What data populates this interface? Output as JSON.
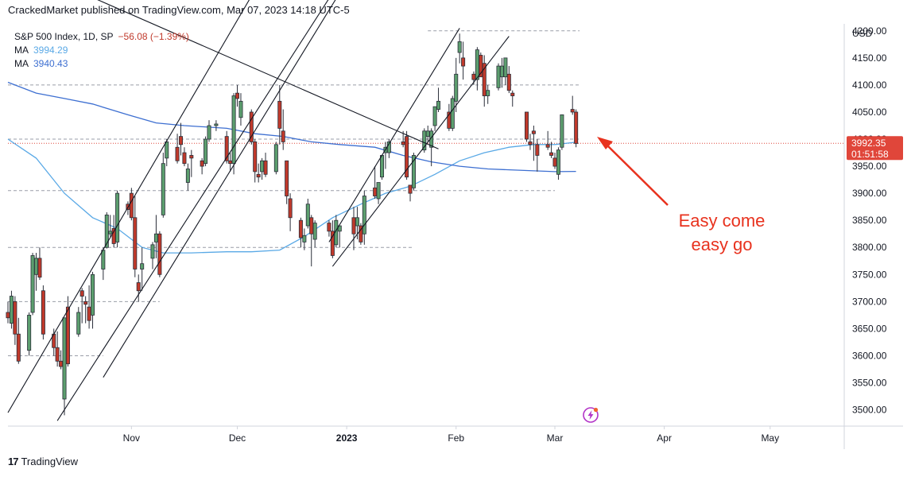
{
  "header": {
    "published": "CrackedMarket published on TradingView.com, Mar 07, 2023 14:18 UTC-5"
  },
  "legend": {
    "symbol": "S&P 500 Index, 1D, SP",
    "change": "−56.08 (−1.39%)",
    "ma1_label": "MA",
    "ma1_value": "3994.29",
    "ma2_label": "MA",
    "ma2_value": "3940.43"
  },
  "price_scale": {
    "currency": "USD",
    "last_price": "3992.35",
    "countdown": "01:51:58"
  },
  "annotation": {
    "line1": "Easy come",
    "line2": "easy go"
  },
  "footer": {
    "brand_mark": "17",
    "brand": "TradingView"
  },
  "colors": {
    "up": "#5c9e6e",
    "down": "#c0392b",
    "ma1": "#5aa9e6",
    "ma2": "#3d6fd1",
    "annotation": "#e8321e",
    "price_label": "#e0463a"
  },
  "icons": [
    "tradingview-logo-icon",
    "lightning-icon"
  ],
  "chart_data": {
    "type": "candlestick",
    "title": "S&P 500 Index, 1D, SP",
    "y_tick_labels": [
      "3500.00",
      "3550.00",
      "3600.00",
      "3650.00",
      "3700.00",
      "3750.00",
      "3800.00",
      "3850.00",
      "3900.00",
      "3950.00",
      "4000.00",
      "4050.00",
      "4100.00",
      "4150.00",
      "4200.00"
    ],
    "x_tick_labels": [
      "Nov",
      "Dec",
      "2023",
      "Feb",
      "Mar",
      "Apr",
      "May"
    ],
    "x_tick_dates": [
      "2022-11-01",
      "2022-12-01",
      "2023-01-01",
      "2023-02-01",
      "2023-03-01",
      "2023-04-01",
      "2023-05-01"
    ],
    "ylim": [
      3470,
      4210
    ],
    "xlim": [
      "2022-09-27",
      "2023-05-22"
    ],
    "candles": [
      {
        "d": "2022-09-27",
        "o": 3680,
        "h": 3700,
        "l": 3660,
        "c": 3670
      },
      {
        "d": "2022-09-28",
        "o": 3660,
        "h": 3720,
        "l": 3650,
        "c": 3710
      },
      {
        "d": "2022-09-29",
        "o": 3700,
        "h": 3710,
        "l": 3620,
        "c": 3640
      },
      {
        "d": "2022-09-30",
        "o": 3640,
        "h": 3670,
        "l": 3585,
        "c": 3590
      },
      {
        "d": "2022-10-03",
        "o": 3610,
        "h": 3680,
        "l": 3600,
        "c": 3675
      },
      {
        "d": "2022-10-04",
        "o": 3680,
        "h": 3790,
        "l": 3675,
        "c": 3785
      },
      {
        "d": "2022-10-05",
        "o": 3750,
        "h": 3790,
        "l": 3720,
        "c": 3780
      },
      {
        "d": "2022-10-06",
        "o": 3780,
        "h": 3800,
        "l": 3740,
        "c": 3745
      },
      {
        "d": "2022-10-07",
        "o": 3720,
        "h": 3730,
        "l": 3630,
        "c": 3640
      },
      {
        "d": "2022-10-10",
        "o": 3640,
        "h": 3650,
        "l": 3600,
        "c": 3615
      },
      {
        "d": "2022-10-11",
        "o": 3615,
        "h": 3645,
        "l": 3580,
        "c": 3590
      },
      {
        "d": "2022-10-12",
        "o": 3590,
        "h": 3610,
        "l": 3575,
        "c": 3580
      },
      {
        "d": "2022-10-13",
        "o": 3520,
        "h": 3670,
        "l": 3490,
        "c": 3670
      },
      {
        "d": "2022-10-14",
        "o": 3690,
        "h": 3710,
        "l": 3580,
        "c": 3585
      },
      {
        "d": "2022-10-17",
        "o": 3640,
        "h": 3690,
        "l": 3635,
        "c": 3680
      },
      {
        "d": "2022-10-18",
        "o": 3720,
        "h": 3725,
        "l": 3660,
        "c": 3710
      },
      {
        "d": "2022-10-19",
        "o": 3700,
        "h": 3710,
        "l": 3660,
        "c": 3695
      },
      {
        "d": "2022-10-20",
        "o": 3690,
        "h": 3730,
        "l": 3650,
        "c": 3665
      },
      {
        "d": "2022-10-21",
        "o": 3675,
        "h": 3755,
        "l": 3650,
        "c": 3750
      },
      {
        "d": "2022-10-24",
        "o": 3760,
        "h": 3800,
        "l": 3740,
        "c": 3795
      },
      {
        "d": "2022-10-25",
        "o": 3800,
        "h": 3865,
        "l": 3798,
        "c": 3860
      },
      {
        "d": "2022-10-26",
        "o": 3825,
        "h": 3860,
        "l": 3820,
        "c": 3830
      },
      {
        "d": "2022-10-27",
        "o": 3835,
        "h": 3860,
        "l": 3800,
        "c": 3807
      },
      {
        "d": "2022-10-28",
        "o": 3810,
        "h": 3905,
        "l": 3800,
        "c": 3900
      },
      {
        "d": "2022-10-31",
        "o": 3880,
        "h": 3885,
        "l": 3860,
        "c": 3870
      },
      {
        "d": "2022-11-01",
        "o": 3900,
        "h": 3910,
        "l": 3850,
        "c": 3855
      },
      {
        "d": "2022-11-02",
        "o": 3855,
        "h": 3895,
        "l": 3745,
        "c": 3760
      },
      {
        "d": "2022-11-03",
        "o": 3735,
        "h": 3750,
        "l": 3700,
        "c": 3720
      },
      {
        "d": "2022-11-04",
        "o": 3760,
        "h": 3800,
        "l": 3720,
        "c": 3770
      },
      {
        "d": "2022-11-07",
        "o": 3780,
        "h": 3810,
        "l": 3760,
        "c": 3805
      },
      {
        "d": "2022-11-08",
        "o": 3810,
        "h": 3860,
        "l": 3780,
        "c": 3825
      },
      {
        "d": "2022-11-09",
        "o": 3825,
        "h": 3830,
        "l": 3745,
        "c": 3750
      },
      {
        "d": "2022-11-10",
        "o": 3860,
        "h": 3975,
        "l": 3855,
        "c": 3955
      },
      {
        "d": "2022-11-11",
        "o": 3965,
        "h": 4000,
        "l": 3950,
        "c": 3995
      },
      {
        "d": "2022-11-14",
        "o": 3985,
        "h": 4010,
        "l": 3955,
        "c": 3960
      },
      {
        "d": "2022-11-15",
        "o": 4005,
        "h": 4030,
        "l": 3970,
        "c": 3990
      },
      {
        "d": "2022-11-16",
        "o": 3975,
        "h": 3985,
        "l": 3950,
        "c": 3955
      },
      {
        "d": "2022-11-17",
        "o": 3920,
        "h": 3955,
        "l": 3905,
        "c": 3945
      },
      {
        "d": "2022-11-18",
        "o": 3970,
        "h": 3980,
        "l": 3930,
        "c": 3965
      },
      {
        "d": "2022-11-21",
        "o": 3960,
        "h": 3965,
        "l": 3935,
        "c": 3950
      },
      {
        "d": "2022-11-22",
        "o": 3955,
        "h": 4005,
        "l": 3950,
        "c": 4000
      },
      {
        "d": "2022-11-23",
        "o": 4000,
        "h": 4035,
        "l": 3995,
        "c": 4025
      },
      {
        "d": "2022-11-25",
        "o": 4025,
        "h": 4035,
        "l": 4015,
        "c": 4028
      },
      {
        "d": "2022-11-28",
        "o": 4005,
        "h": 4015,
        "l": 3955,
        "c": 3960
      },
      {
        "d": "2022-11-29",
        "o": 3960,
        "h": 3975,
        "l": 3940,
        "c": 3955
      },
      {
        "d": "2022-11-30",
        "o": 3955,
        "h": 4085,
        "l": 3935,
        "c": 4080
      },
      {
        "d": "2022-12-01",
        "o": 4085,
        "h": 4100,
        "l": 4060,
        "c": 4075
      },
      {
        "d": "2022-12-02",
        "o": 4040,
        "h": 4085,
        "l": 4025,
        "c": 4070
      },
      {
        "d": "2022-12-05",
        "o": 4050,
        "h": 4055,
        "l": 3990,
        "c": 3995
      },
      {
        "d": "2022-12-06",
        "o": 3995,
        "h": 4000,
        "l": 3920,
        "c": 3940
      },
      {
        "d": "2022-12-07",
        "o": 3935,
        "h": 3955,
        "l": 3920,
        "c": 3930
      },
      {
        "d": "2022-12-08",
        "o": 3940,
        "h": 3965,
        "l": 3925,
        "c": 3960
      },
      {
        "d": "2022-12-09",
        "o": 3960,
        "h": 3975,
        "l": 3930,
        "c": 3935
      },
      {
        "d": "2022-12-12",
        "o": 3940,
        "h": 3995,
        "l": 3935,
        "c": 3990
      },
      {
        "d": "2022-12-13",
        "o": 4070,
        "h": 4100,
        "l": 3990,
        "c": 4020
      },
      {
        "d": "2022-12-14",
        "o": 4015,
        "h": 4055,
        "l": 3980,
        "c": 3995
      },
      {
        "d": "2022-12-15",
        "o": 3960,
        "h": 3960,
        "l": 3880,
        "c": 3895
      },
      {
        "d": "2022-12-16",
        "o": 3890,
        "h": 3900,
        "l": 3830,
        "c": 3855
      },
      {
        "d": "2022-12-19",
        "o": 3850,
        "h": 3855,
        "l": 3800,
        "c": 3818
      },
      {
        "d": "2022-12-20",
        "o": 3810,
        "h": 3835,
        "l": 3795,
        "c": 3822
      },
      {
        "d": "2022-12-21",
        "o": 3840,
        "h": 3890,
        "l": 3835,
        "c": 3880
      },
      {
        "d": "2022-12-22",
        "o": 3855,
        "h": 3860,
        "l": 3765,
        "c": 3825
      },
      {
        "d": "2022-12-23",
        "o": 3815,
        "h": 3850,
        "l": 3800,
        "c": 3845
      },
      {
        "d": "2022-12-27",
        "o": 3845,
        "h": 3850,
        "l": 3820,
        "c": 3830
      },
      {
        "d": "2022-12-28",
        "o": 3830,
        "h": 3850,
        "l": 3780,
        "c": 3785
      },
      {
        "d": "2022-12-29",
        "o": 3805,
        "h": 3860,
        "l": 3800,
        "c": 3850
      },
      {
        "d": "2022-12-30",
        "o": 3830,
        "h": 3840,
        "l": 3800,
        "c": 3840
      },
      {
        "d": "2023-01-03",
        "o": 3855,
        "h": 3875,
        "l": 3795,
        "c": 3825
      },
      {
        "d": "2023-01-04",
        "o": 3840,
        "h": 3875,
        "l": 3815,
        "c": 3855
      },
      {
        "d": "2023-01-05",
        "o": 3840,
        "h": 3845,
        "l": 3805,
        "c": 3810
      },
      {
        "d": "2023-01-06",
        "o": 3825,
        "h": 3905,
        "l": 3805,
        "c": 3895
      },
      {
        "d": "2023-01-09",
        "o": 3910,
        "h": 3950,
        "l": 3890,
        "c": 3895
      },
      {
        "d": "2023-01-10",
        "o": 3890,
        "h": 3920,
        "l": 3880,
        "c": 3920
      },
      {
        "d": "2023-01-11",
        "o": 3930,
        "h": 3970,
        "l": 3925,
        "c": 3970
      },
      {
        "d": "2023-01-12",
        "o": 3975,
        "h": 3995,
        "l": 3945,
        "c": 3985
      },
      {
        "d": "2023-01-13",
        "o": 3975,
        "h": 4000,
        "l": 3965,
        "c": 3995
      },
      {
        "d": "2023-01-17",
        "o": 3995,
        "h": 4015,
        "l": 3985,
        "c": 3990
      },
      {
        "d": "2023-01-18",
        "o": 4005,
        "h": 4015,
        "l": 3925,
        "c": 3930
      },
      {
        "d": "2023-01-19",
        "o": 3915,
        "h": 3915,
        "l": 3885,
        "c": 3900
      },
      {
        "d": "2023-01-20",
        "o": 3910,
        "h": 3975,
        "l": 3905,
        "c": 3970
      },
      {
        "d": "2023-01-23",
        "o": 3980,
        "h": 4020,
        "l": 3975,
        "c": 4015
      },
      {
        "d": "2023-01-24",
        "o": 4005,
        "h": 4025,
        "l": 3995,
        "c": 4015
      },
      {
        "d": "2023-01-25",
        "o": 3985,
        "h": 4020,
        "l": 3950,
        "c": 4015
      },
      {
        "d": "2023-01-26",
        "o": 4025,
        "h": 4060,
        "l": 4015,
        "c": 4060
      },
      {
        "d": "2023-01-27",
        "o": 4055,
        "h": 4095,
        "l": 4050,
        "c": 4070
      },
      {
        "d": "2023-01-30",
        "o": 4050,
        "h": 4065,
        "l": 4015,
        "c": 4020
      },
      {
        "d": "2023-01-31",
        "o": 4020,
        "h": 4080,
        "l": 4015,
        "c": 4075
      },
      {
        "d": "2023-02-01",
        "o": 4070,
        "h": 4150,
        "l": 4050,
        "c": 4120
      },
      {
        "d": "2023-02-02",
        "o": 4160,
        "h": 4195,
        "l": 4140,
        "c": 4180
      },
      {
        "d": "2023-02-03",
        "o": 4150,
        "h": 4180,
        "l": 4110,
        "c": 4135
      },
      {
        "d": "2023-02-06",
        "o": 4120,
        "h": 4125,
        "l": 4100,
        "c": 4110
      },
      {
        "d": "2023-02-07",
        "o": 4110,
        "h": 4170,
        "l": 4090,
        "c": 4165
      },
      {
        "d": "2023-02-08",
        "o": 4155,
        "h": 4160,
        "l": 4115,
        "c": 4115
      },
      {
        "d": "2023-02-09",
        "o": 4140,
        "h": 4155,
        "l": 4060,
        "c": 4080
      },
      {
        "d": "2023-02-10",
        "o": 4080,
        "h": 4100,
        "l": 4065,
        "c": 4090
      },
      {
        "d": "2023-02-13",
        "o": 4095,
        "h": 4140,
        "l": 4090,
        "c": 4135
      },
      {
        "d": "2023-02-14",
        "o": 4115,
        "h": 4150,
        "l": 4095,
        "c": 4135
      },
      {
        "d": "2023-02-15",
        "o": 4115,
        "h": 4150,
        "l": 4100,
        "c": 4150
      },
      {
        "d": "2023-02-16",
        "o": 4120,
        "h": 4135,
        "l": 4085,
        "c": 4090
      },
      {
        "d": "2023-02-17",
        "o": 4085,
        "h": 4090,
        "l": 4060,
        "c": 4080
      },
      {
        "d": "2023-02-21",
        "o": 4050,
        "h": 4050,
        "l": 3995,
        "c": 4000
      },
      {
        "d": "2023-02-22",
        "o": 3995,
        "h": 4010,
        "l": 3980,
        "c": 3990
      },
      {
        "d": "2023-02-23",
        "o": 4015,
        "h": 4025,
        "l": 3960,
        "c": 4010
      },
      {
        "d": "2023-02-24",
        "o": 3990,
        "h": 4000,
        "l": 3940,
        "c": 3970
      },
      {
        "d": "2023-02-27",
        "o": 3990,
        "h": 4015,
        "l": 3980,
        "c": 3985
      },
      {
        "d": "2023-02-28",
        "o": 3975,
        "h": 3995,
        "l": 3965,
        "c": 3970
      },
      {
        "d": "2023-03-01",
        "o": 3965,
        "h": 3975,
        "l": 3945,
        "c": 3950
      },
      {
        "d": "2023-03-02",
        "o": 3935,
        "h": 3985,
        "l": 3925,
        "c": 3980
      },
      {
        "d": "2023-03-03",
        "o": 3985,
        "h": 4045,
        "l": 3980,
        "c": 4045
      },
      {
        "d": "2023-03-06",
        "o": 4055,
        "h": 4080,
        "l": 4045,
        "c": 4050
      },
      {
        "d": "2023-03-07",
        "o": 4050,
        "h": 4055,
        "l": 3985,
        "c": 3992
      }
    ],
    "ma1": [
      [
        "2022-09-27",
        4000
      ],
      [
        "2022-10-05",
        3965
      ],
      [
        "2022-10-13",
        3900
      ],
      [
        "2022-10-21",
        3855
      ],
      [
        "2022-10-28",
        3835
      ],
      [
        "2022-11-04",
        3800
      ],
      [
        "2022-11-10",
        3790
      ],
      [
        "2022-11-18",
        3790
      ],
      [
        "2022-11-28",
        3792
      ],
      [
        "2022-12-05",
        3792
      ],
      [
        "2022-12-13",
        3795
      ],
      [
        "2022-12-20",
        3820
      ],
      [
        "2022-12-28",
        3855
      ],
      [
        "2023-01-05",
        3880
      ],
      [
        "2023-01-12",
        3900
      ],
      [
        "2023-01-19",
        3913
      ],
      [
        "2023-01-26",
        3935
      ],
      [
        "2023-02-02",
        3960
      ],
      [
        "2023-02-09",
        3975
      ],
      [
        "2023-02-16",
        3985
      ],
      [
        "2023-02-23",
        3990
      ],
      [
        "2023-03-01",
        3990
      ],
      [
        "2023-03-07",
        3994.29
      ]
    ],
    "ma2": [
      [
        "2022-09-27",
        4105
      ],
      [
        "2022-10-05",
        4085
      ],
      [
        "2022-10-13",
        4075
      ],
      [
        "2022-10-21",
        4065
      ],
      [
        "2022-10-31",
        4045
      ],
      [
        "2022-11-08",
        4030
      ],
      [
        "2022-11-16",
        4025
      ],
      [
        "2022-11-28",
        4020
      ],
      [
        "2022-12-06",
        4010
      ],
      [
        "2022-12-14",
        4005
      ],
      [
        "2022-12-22",
        3995
      ],
      [
        "2022-12-30",
        3990
      ],
      [
        "2023-01-09",
        3985
      ],
      [
        "2023-01-17",
        3970
      ],
      [
        "2023-01-25",
        3958
      ],
      [
        "2023-02-02",
        3950
      ],
      [
        "2023-02-10",
        3945
      ],
      [
        "2023-02-21",
        3942
      ],
      [
        "2023-03-01",
        3940
      ],
      [
        "2023-03-07",
        3940.43
      ]
    ],
    "dashed_levels": [
      {
        "y": 4200,
        "from": "2023-01-24",
        "to": "2023-03-08"
      },
      {
        "y": 4100,
        "from": "2022-09-27",
        "to": "2023-03-08"
      },
      {
        "y": 4000,
        "from": "2022-09-27",
        "to": "2023-03-08"
      },
      {
        "y": 3905,
        "from": "2022-09-27",
        "to": "2023-03-01"
      },
      {
        "y": 3800,
        "from": "2022-09-27",
        "to": "2023-01-20"
      },
      {
        "y": 3700,
        "from": "2022-09-27",
        "to": "2022-11-09"
      },
      {
        "y": 3600,
        "from": "2022-09-27",
        "to": "2022-10-24"
      }
    ],
    "trend_lines": [
      {
        "from": [
          "2022-09-27",
          3495
        ],
        "to": [
          "2022-12-10",
          4320
        ]
      },
      {
        "from": [
          "2022-10-11",
          3480
        ],
        "to": [
          "2022-12-28",
          4270
        ]
      },
      {
        "from": [
          "2022-10-24",
          3560
        ],
        "to": [
          "2022-12-30",
          4270
        ]
      },
      {
        "from": [
          "2022-09-27",
          4330
        ],
        "to": [
          "2023-01-27",
          3982
        ]
      },
      {
        "from": [
          "2022-12-27",
          3810
        ],
        "to": [
          "2023-02-02",
          4205
        ]
      },
      {
        "from": [
          "2022-12-28",
          3765
        ],
        "to": [
          "2023-02-16",
          4190
        ]
      }
    ],
    "last_price": 3992.35,
    "currency": "USD"
  }
}
